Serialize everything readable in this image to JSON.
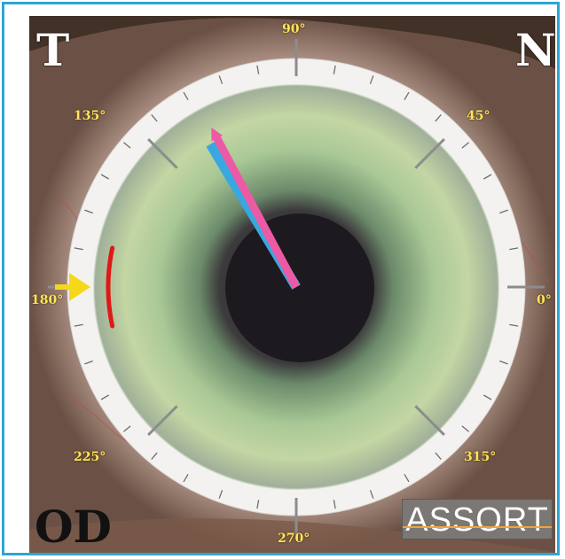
{
  "corners": {
    "top_left": "T",
    "top_right": "N",
    "bottom_left": "OD"
  },
  "degrees": {
    "d90": "90°",
    "d45": "45°",
    "d135": "135°",
    "d180": "180°",
    "d0": "0°",
    "d225": "225°",
    "d315": "315°",
    "d270": "270°"
  },
  "logo": {
    "text": "ASSORT"
  },
  "colors": {
    "frame": "#2aa6d6",
    "degree_text": "#ffe45c",
    "pink_axis": "#ec5aa6",
    "blue_axis": "#39a7e0",
    "arc": "#e01818",
    "arrow": "#f6d81a",
    "iris": "#a8c89a",
    "pupil": "#1c1a1f"
  },
  "axes": {
    "pink_axis_degrees": 118,
    "blue_axis_degrees": 121
  },
  "marker": {
    "arc_from_degrees": 168,
    "arc_to_degrees": 192,
    "arrow_at_degrees": 180
  }
}
